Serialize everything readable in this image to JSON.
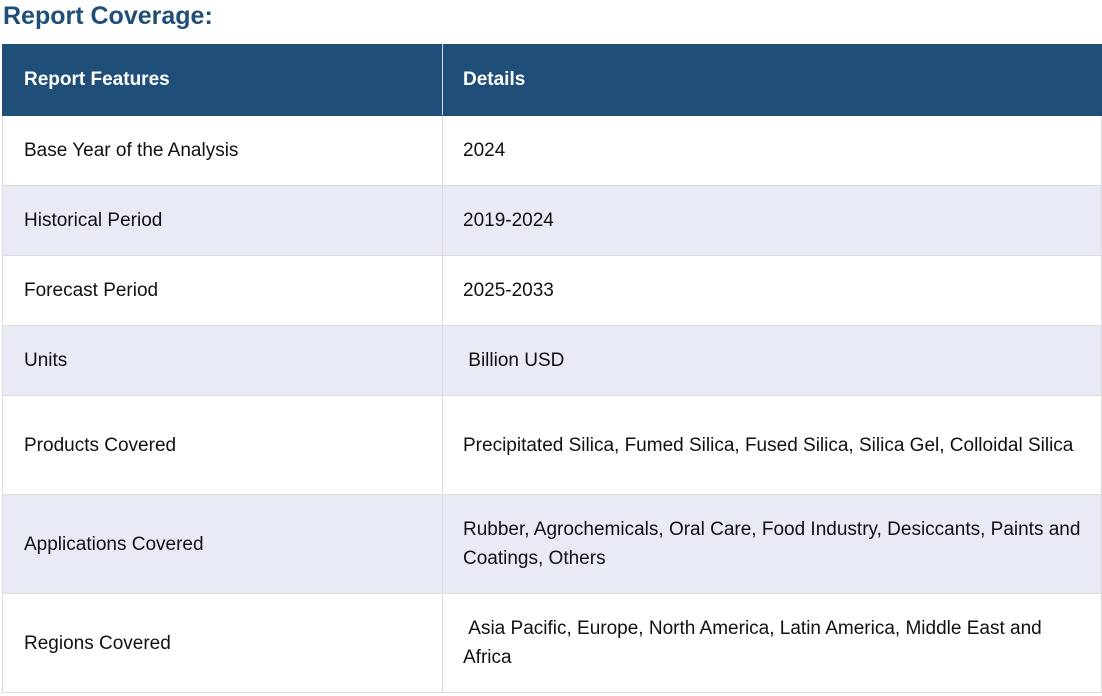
{
  "title": "Report Coverage:",
  "table": {
    "headers": [
      "Report Features",
      "Details"
    ],
    "rows": [
      {
        "feature": "Base Year of the Analysis",
        "details": "2024"
      },
      {
        "feature": "Historical Period",
        "details": "2019-2024"
      },
      {
        "feature": "Forecast Period",
        "details": "2025-2033"
      },
      {
        "feature": "Units",
        "details": " Billion USD"
      },
      {
        "feature": "Products Covered",
        "details": "Precipitated Silica, Fumed Silica, Fused Silica, Silica Gel, Colloidal Silica"
      },
      {
        "feature": "Applications Covered",
        "details": "Rubber, Agrochemicals, Oral Care, Food Industry, Desiccants, Paints and Coatings, Others"
      },
      {
        "feature": "Regions Covered",
        "details": " Asia Pacific, Europe, North America, Latin America, Middle East and Africa"
      }
    ]
  },
  "colors": {
    "header_bg": "#1f4e79",
    "title_color": "#1f4e79",
    "alt_row_bg": "#e8eaf5"
  }
}
